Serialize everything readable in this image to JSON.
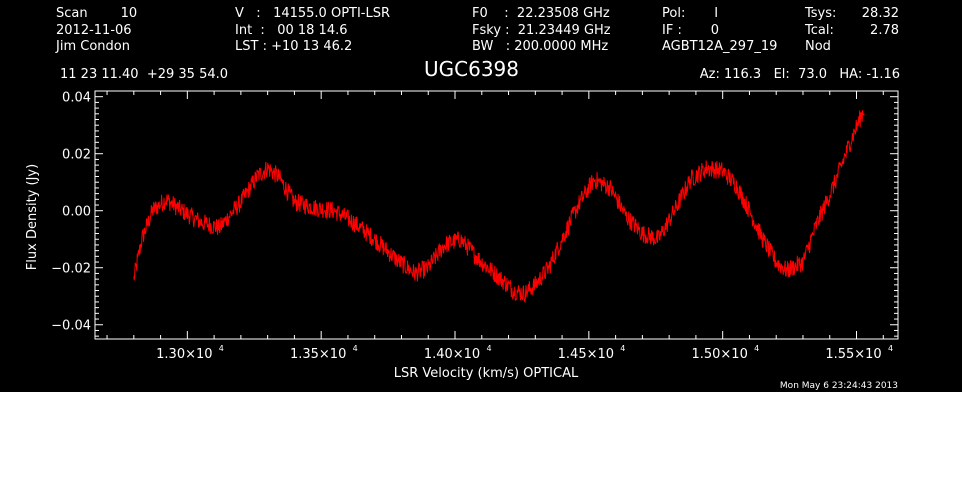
{
  "header": {
    "col1": [
      "Scan        10",
      "2012-11-06",
      "Jim Condon"
    ],
    "col2": [
      "V   :   14155.0 OPTI-LSR",
      "Int  :   00 18 14.6",
      "LST : +10 13 46.2"
    ],
    "col3": [
      "F0    :  22.23508 GHz",
      "Fsky :  21.23449 GHz",
      "BW   : 200.0000 MHz"
    ],
    "col4": [
      "Pol:       I",
      "IF :       0",
      "AGBT12A_297_19"
    ],
    "col5": [
      "Tsys:",
      "Tcal:",
      "Nod"
    ],
    "col6": [
      "28.32",
      "2.78",
      ""
    ],
    "coords": "11 23 11.40  +29 35 54.0",
    "source": "UGC6398",
    "pointing": "Az: 116.3   El:  73.0   HA: -1.16",
    "timestamp": "Mon May  6 23:24:43 2013"
  },
  "colors": {
    "background": "#000000",
    "foreground": "#ffffff",
    "series": "#ff0000"
  },
  "chart_data": {
    "type": "line",
    "title": "UGC6398",
    "xlabel": "LSR Velocity (km/s) OPTICAL",
    "ylabel": "Flux Density (Jy)",
    "xlim": [
      12655,
      15655
    ],
    "ylim": [
      -0.045,
      0.042
    ],
    "xticks": [
      13000,
      13500,
      14000,
      14500,
      15000,
      15500
    ],
    "xtick_labels": [
      {
        "mant": "1.30×10",
        "exp": "4"
      },
      {
        "mant": "1.35×10",
        "exp": "4"
      },
      {
        "mant": "1.40×10",
        "exp": "4"
      },
      {
        "mant": "1.45×10",
        "exp": "4"
      },
      {
        "mant": "1.50×10",
        "exp": "4"
      },
      {
        "mant": "1.55×10",
        "exp": "4"
      }
    ],
    "yticks": [
      -0.04,
      -0.02,
      0.0,
      0.02,
      0.04
    ],
    "ytick_labels": [
      "−0.04",
      "−0.02",
      "0.00",
      "0.02",
      "0.04"
    ],
    "grid": false,
    "series": [
      {
        "color": "#ff0000",
        "x": [
          12800,
          12830,
          12870,
          12920,
          12980,
          13050,
          13120,
          13200,
          13260,
          13300,
          13340,
          13400,
          13480,
          13550,
          13620,
          13700,
          13780,
          13850,
          13900,
          13960,
          14020,
          14100,
          14160,
          14220,
          14260,
          14300,
          14350,
          14400,
          14460,
          14520,
          14580,
          14640,
          14700,
          14760,
          14820,
          14880,
          14940,
          15000,
          15050,
          15100,
          15150,
          15200,
          15240,
          15300,
          15350,
          15420,
          15480,
          15530
        ],
        "y": [
          -0.024,
          -0.01,
          0.0,
          0.004,
          0.0,
          -0.004,
          -0.006,
          0.003,
          0.012,
          0.015,
          0.012,
          0.003,
          0.001,
          0.0,
          -0.004,
          -0.01,
          -0.017,
          -0.022,
          -0.02,
          -0.012,
          -0.01,
          -0.018,
          -0.023,
          -0.028,
          -0.029,
          -0.026,
          -0.02,
          -0.01,
          0.002,
          0.011,
          0.008,
          -0.002,
          -0.008,
          -0.01,
          0.0,
          0.011,
          0.015,
          0.014,
          0.009,
          0.0,
          -0.01,
          -0.018,
          -0.021,
          -0.018,
          -0.005,
          0.01,
          0.025,
          0.036
        ]
      }
    ]
  }
}
